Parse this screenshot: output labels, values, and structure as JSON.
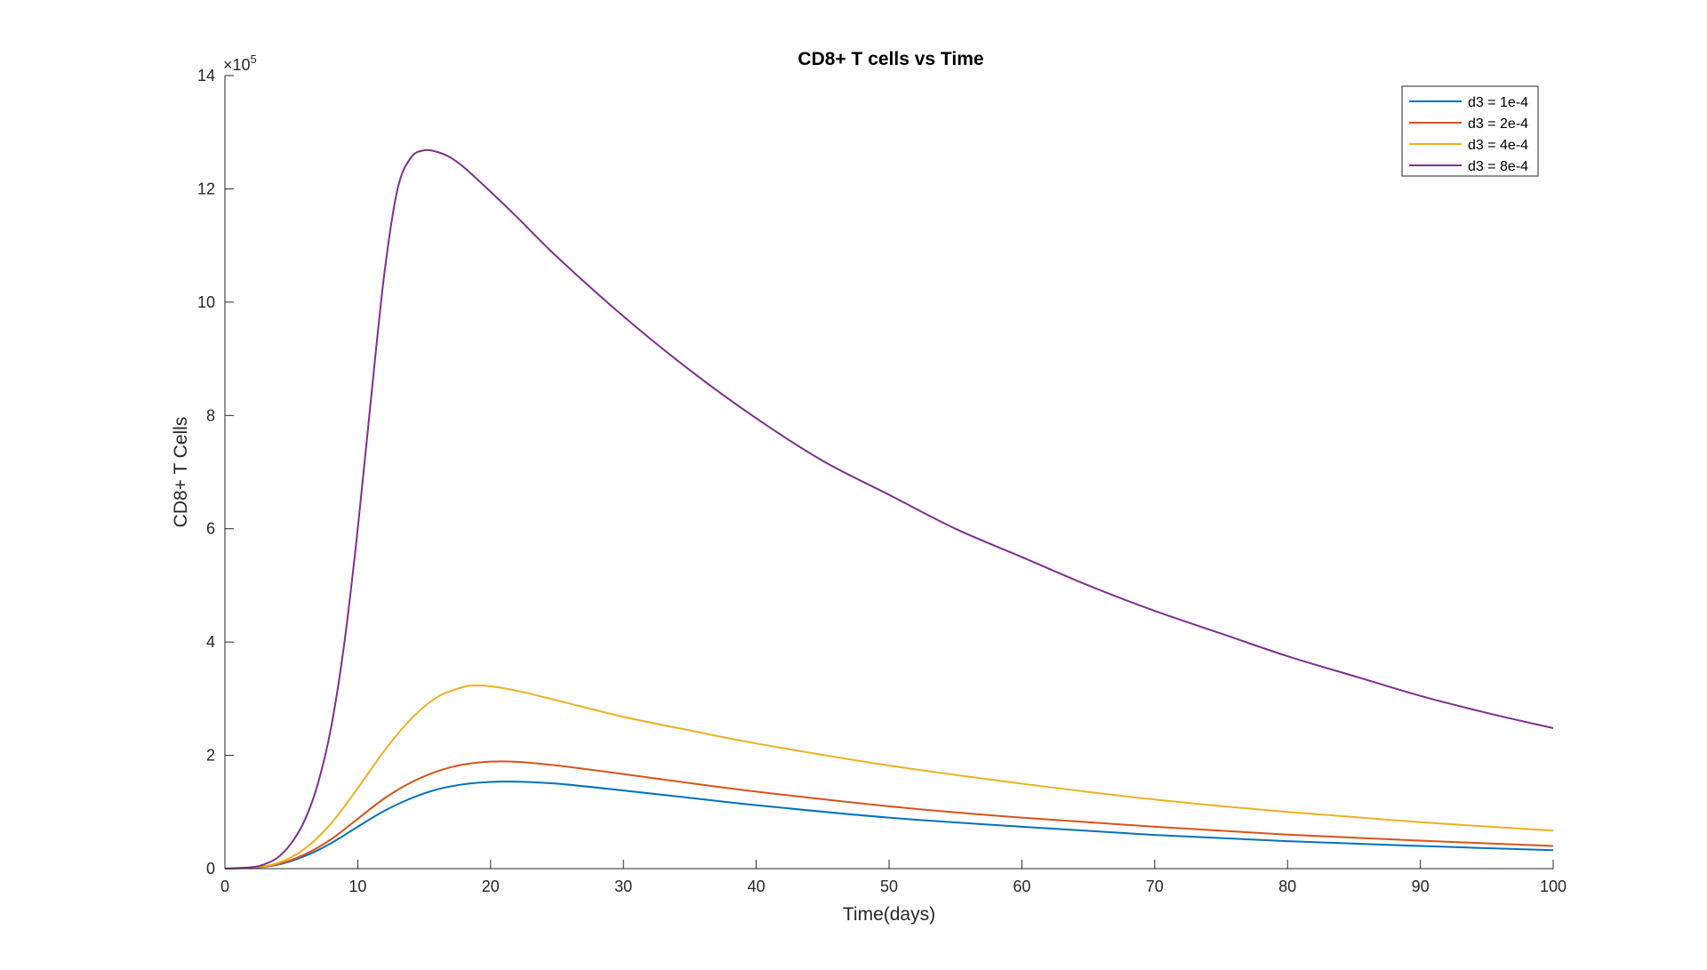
{
  "chart_data": {
    "type": "line",
    "title": "CD8+ T cells vs Time",
    "xlabel": "Time(days)",
    "ylabel": "CD8+ T Cells",
    "xlim": [
      0,
      100
    ],
    "ylim": [
      0,
      1400000
    ],
    "x_ticks": [
      0,
      10,
      20,
      30,
      40,
      50,
      60,
      70,
      80,
      90,
      100
    ],
    "y_ticks": [
      0,
      2,
      4,
      6,
      8,
      10,
      12,
      14
    ],
    "y_multiplier": "×10",
    "y_multiplier_exp": "5",
    "grid": false,
    "legend_position": "top-right",
    "series": [
      {
        "name": "d3 = 1e-4",
        "color": "#0072BD",
        "points": [
          [
            0,
            0
          ],
          [
            2,
            1500
          ],
          [
            4,
            7000
          ],
          [
            6,
            22000
          ],
          [
            8,
            45000
          ],
          [
            10,
            74000
          ],
          [
            12,
            102000
          ],
          [
            14,
            124000
          ],
          [
            16,
            140000
          ],
          [
            18,
            149000
          ],
          [
            20,
            153000
          ],
          [
            22,
            153500
          ],
          [
            25,
            150000
          ],
          [
            30,
            138000
          ],
          [
            35,
            125000
          ],
          [
            40,
            112000
          ],
          [
            50,
            90000
          ],
          [
            60,
            74000
          ],
          [
            70,
            59500
          ],
          [
            80,
            48500
          ],
          [
            90,
            40000
          ],
          [
            100,
            32500
          ]
        ]
      },
      {
        "name": "d3 = 2e-4",
        "color": "#D95319",
        "points": [
          [
            0,
            0
          ],
          [
            2,
            1700
          ],
          [
            4,
            8000
          ],
          [
            6,
            25000
          ],
          [
            8,
            52000
          ],
          [
            10,
            88000
          ],
          [
            12,
            124000
          ],
          [
            14,
            152000
          ],
          [
            16,
            172000
          ],
          [
            18,
            184000
          ],
          [
            20,
            189000
          ],
          [
            22,
            188500
          ],
          [
            25,
            182000
          ],
          [
            30,
            167000
          ],
          [
            35,
            151000
          ],
          [
            40,
            136000
          ],
          [
            50,
            110000
          ],
          [
            60,
            90000
          ],
          [
            70,
            74000
          ],
          [
            80,
            60000
          ],
          [
            90,
            49500
          ],
          [
            100,
            40000
          ]
        ]
      },
      {
        "name": "d3 = 4e-4",
        "color": "#EDB120",
        "points": [
          [
            0,
            0
          ],
          [
            2,
            2000
          ],
          [
            4,
            10000
          ],
          [
            6,
            35000
          ],
          [
            8,
            80000
          ],
          [
            10,
            142000
          ],
          [
            12,
            208000
          ],
          [
            14,
            264000
          ],
          [
            16,
            303000
          ],
          [
            18,
            321000
          ],
          [
            19,
            323500
          ],
          [
            20,
            322000
          ],
          [
            22,
            314000
          ],
          [
            25,
            297000
          ],
          [
            30,
            268000
          ],
          [
            35,
            244000
          ],
          [
            40,
            221000
          ],
          [
            50,
            182000
          ],
          [
            60,
            150000
          ],
          [
            70,
            122000
          ],
          [
            80,
            100000
          ],
          [
            90,
            82000
          ],
          [
            100,
            67000
          ]
        ]
      },
      {
        "name": "d3 = 8e-4",
        "color": "#7E2F8E",
        "points": [
          [
            0,
            0
          ],
          [
            2,
            2500
          ],
          [
            3,
            8000
          ],
          [
            4,
            20000
          ],
          [
            5,
            45000
          ],
          [
            6,
            85000
          ],
          [
            7,
            150000
          ],
          [
            8,
            250000
          ],
          [
            9,
            400000
          ],
          [
            10,
            600000
          ],
          [
            11,
            830000
          ],
          [
            12,
            1050000
          ],
          [
            13,
            1200000
          ],
          [
            14,
            1255000
          ],
          [
            15,
            1268000
          ],
          [
            16,
            1265000
          ],
          [
            17,
            1255000
          ],
          [
            18,
            1238000
          ],
          [
            20,
            1195000
          ],
          [
            22,
            1150000
          ],
          [
            25,
            1080000
          ],
          [
            30,
            975000
          ],
          [
            35,
            880000
          ],
          [
            40,
            795000
          ],
          [
            45,
            720000
          ],
          [
            50,
            660000
          ],
          [
            55,
            600000
          ],
          [
            60,
            550000
          ],
          [
            65,
            500000
          ],
          [
            70,
            455000
          ],
          [
            75,
            415000
          ],
          [
            80,
            375000
          ],
          [
            85,
            340000
          ],
          [
            90,
            305000
          ],
          [
            95,
            275000
          ],
          [
            100,
            248000
          ]
        ]
      }
    ]
  }
}
